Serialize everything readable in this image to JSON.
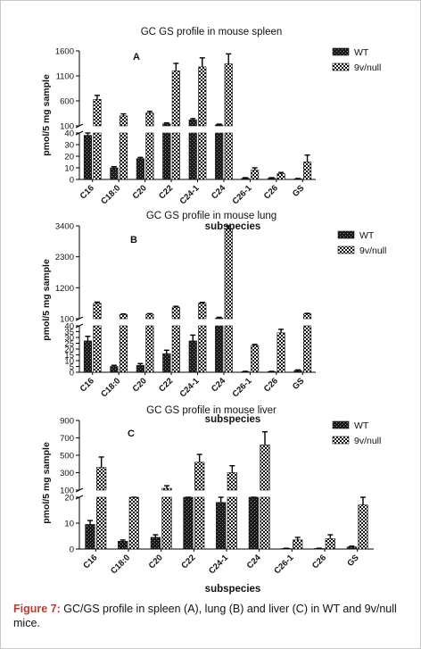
{
  "figure": {
    "caption_label": "Figure 7:",
    "caption_text": " GC/GS profile in spleen (A), lung (B) and liver (C) in WT and 9v/null mice."
  },
  "chart_data": [
    {
      "type": "bar",
      "panel": "A",
      "title": "GC GS profile in mouse spleen",
      "ylabel": "pmol/5 mg sample",
      "xlabel": "",
      "categories": [
        "C16",
        "C18:0",
        "C20",
        "C22",
        "C24-1",
        "C24",
        "C26-1",
        "C26",
        "GS"
      ],
      "axis_break": true,
      "lower_ylim": [
        0,
        40
      ],
      "lower_ticks": [
        0,
        10,
        20,
        30,
        40
      ],
      "upper_ylim": [
        100,
        1600
      ],
      "upper_ticks": [
        100,
        600,
        1100,
        1600
      ],
      "series": [
        {
          "name": "WT",
          "pattern": "solid-speckled",
          "values": [
            38,
            10,
            18,
            140,
            220,
            120,
            1,
            1,
            0.5
          ],
          "errors": [
            2,
            1,
            1,
            20,
            25,
            15,
            0.5,
            0.5,
            0.3
          ]
        },
        {
          "name": "9v/null",
          "pattern": "checkered",
          "values": [
            630,
            300,
            360,
            1200,
            1280,
            1340,
            8,
            5,
            15
          ],
          "errors": [
            80,
            40,
            30,
            150,
            180,
            200,
            2,
            1,
            6
          ]
        }
      ]
    },
    {
      "type": "bar",
      "panel": "B",
      "title": "GC GS profile in mouse lung",
      "ylabel": "pmol/5 mg sample",
      "xlabel": "subspecies",
      "categories": [
        "C16",
        "C18:0",
        "C20",
        "C22",
        "C24-1",
        "C24",
        "C26-1",
        "C26",
        "GS"
      ],
      "axis_break": true,
      "lower_ylim": [
        0,
        40
      ],
      "lower_ticks": [
        0,
        5,
        10,
        15,
        20,
        25,
        30,
        35,
        40
      ],
      "upper_ylim": [
        100,
        3400
      ],
      "upper_ticks": [
        100,
        1200,
        2300,
        3400
      ],
      "series": [
        {
          "name": "WT",
          "pattern": "solid-speckled",
          "values": [
            27,
            5,
            6,
            16,
            27,
            120,
            0.5,
            0.5,
            1.5
          ],
          "errors": [
            4,
            1,
            1.5,
            3,
            5,
            30,
            0.3,
            0.3,
            0.5
          ]
        },
        {
          "name": "9v/null",
          "pattern": "checkered",
          "values": [
            650,
            250,
            260,
            510,
            650,
            3300,
            23,
            34,
            270
          ],
          "errors": [
            40,
            20,
            20,
            30,
            30,
            120,
            1,
            3,
            20
          ]
        }
      ]
    },
    {
      "type": "bar",
      "panel": "C",
      "title": "GC GS profile in mouse liver",
      "ylabel": "pmol/5 mg sample",
      "xlabel": "subspecies",
      "categories": [
        "C16",
        "C18:0",
        "C20",
        "C22",
        "C24-1",
        "C24",
        "C26-1",
        "C26",
        "GS"
      ],
      "axis_break": true,
      "lower_ylim": [
        0,
        20
      ],
      "lower_ticks": [
        0,
        10,
        20
      ],
      "upper_ylim": [
        100,
        900
      ],
      "upper_ticks": [
        100,
        300,
        500,
        700,
        900
      ],
      "series": [
        {
          "name": "WT",
          "pattern": "solid-speckled",
          "values": [
            9.5,
            3,
            4.5,
            22,
            18,
            22,
            0.2,
            0.2,
            0.8
          ],
          "errors": [
            1.5,
            0.5,
            1,
            1,
            2,
            1,
            0.1,
            0.1,
            0.3
          ]
        },
        {
          "name": "9v/null",
          "pattern": "checkered",
          "values": [
            360,
            75,
            120,
            420,
            300,
            620,
            3.5,
            4,
            17
          ],
          "errors": [
            120,
            20,
            30,
            90,
            80,
            150,
            1,
            1.5,
            4
          ]
        }
      ]
    }
  ]
}
